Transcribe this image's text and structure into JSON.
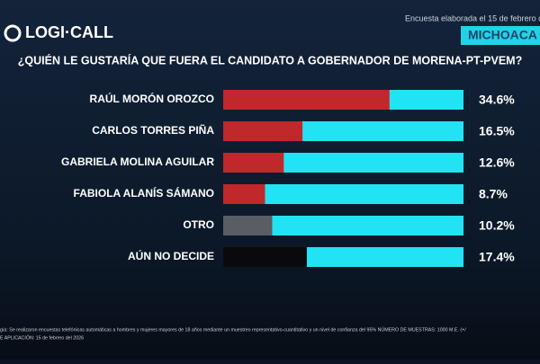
{
  "brand": "LOGI·CALL",
  "header": {
    "date_note": "Encuesta elaborada el 15 de febrero c",
    "region": "MICHOACA"
  },
  "chart_data": {
    "type": "bar",
    "title": "¿QUIÉN LE GUSTARÍA QUE FUERA EL CANDIDATO A GOBERNADOR DE MORENA-PT-PVEM?",
    "categories": [
      "RAÚL MORÓN OROZCO",
      "CARLOS TORRES PIÑA",
      "GABRIELA MOLINA AGUILAR",
      "FABIOLA ALANÍS SÁMANO",
      "OTRO",
      "AÚN NO DECIDE"
    ],
    "values": [
      34.6,
      16.5,
      12.6,
      8.7,
      10.2,
      17.4
    ],
    "value_labels": [
      "34.6%",
      "16.5%",
      "12.6%",
      "8.7%",
      "10.2%",
      "17.4%"
    ],
    "colors": [
      "#c0282b",
      "#c0282b",
      "#c0282b",
      "#c0282b",
      "#5a5d63",
      "#0a0a0c"
    ],
    "track_color": "#22e3f3",
    "xlim": [
      0,
      50
    ]
  },
  "footer": {
    "methodology": "gía: Se realizaron encuestas telefónicas automáticas a hombres y mujeres mayores de 18 años mediante un muestreo representativo-cuantitativo y un nivel de confianza del 95% NÚMERO DE MUESTRAS: 1000 M.E. (+/",
    "application": "E APLICACIÓN: 15 de febrero del 2026"
  }
}
